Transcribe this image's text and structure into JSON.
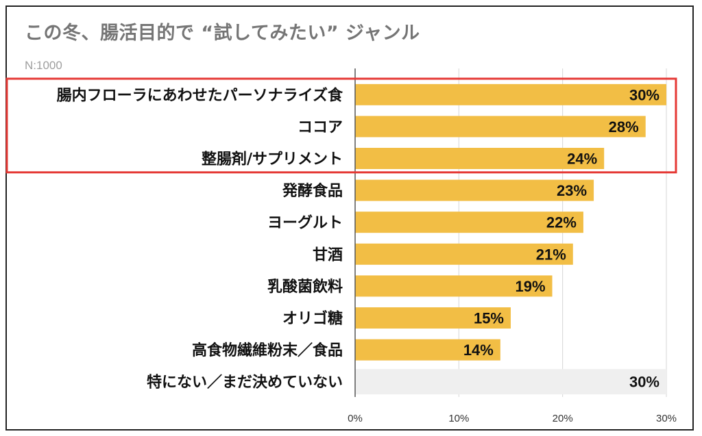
{
  "colors": {
    "bar": "#F2BE45",
    "bar_none": "#EFEFEF",
    "highlight": "#E53935",
    "grid": "#D6D6D6",
    "axis": "#555555"
  },
  "chart_data": {
    "type": "bar",
    "orientation": "horizontal",
    "title": "この冬、腸活目的で “試してみたい” ジャンル",
    "subtitle": "N:1000",
    "xlabel": "",
    "ylabel": "",
    "xlim": [
      0,
      30
    ],
    "xticks": [
      0,
      10,
      20,
      30
    ],
    "xtick_labels": [
      "0%",
      "10%",
      "20%",
      "30%"
    ],
    "grid": true,
    "categories": [
      "腸内フローラにあわせたパーソナライズ食",
      "ココア",
      "整腸剤/サプリメント",
      "発酵食品",
      "ヨーグルト",
      "甘酒",
      "乳酸菌飲料",
      "オリゴ糖",
      "高食物繊維粉末／食品",
      "特にない／まだ決めていない"
    ],
    "values": [
      30,
      28,
      24,
      23,
      22,
      21,
      19,
      15,
      14,
      30
    ],
    "value_labels": [
      "30%",
      "28%",
      "24%",
      "23%",
      "22%",
      "21%",
      "19%",
      "15%",
      "14%",
      "30%"
    ],
    "highlighted_categories": [
      "腸内フローラにあわせたパーソナライズ食",
      "ココア",
      "整腸剤/サプリメント"
    ]
  }
}
